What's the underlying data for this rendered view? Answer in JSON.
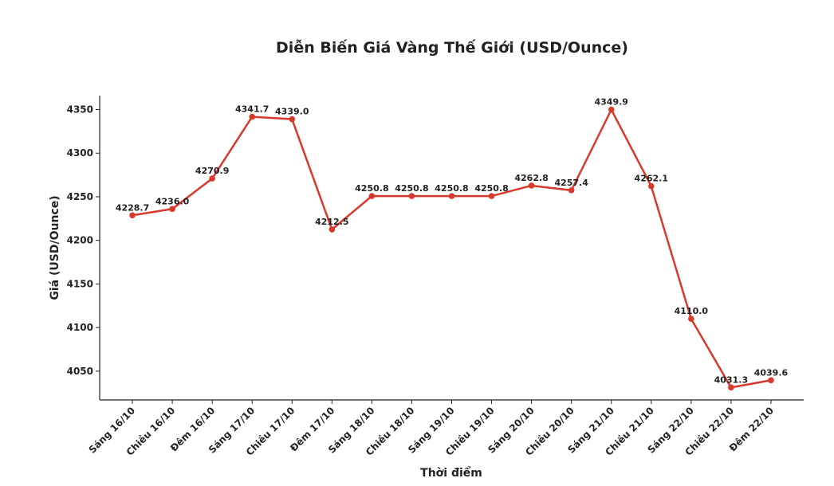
{
  "chart_data": {
    "type": "line",
    "title": "Diễn Biến Giá Vàng Thế Giới (USD/Ounce)",
    "x_label": "Thời điểm",
    "y_label": "Giá (USD/Ounce)",
    "categories": [
      "Sáng 16/10",
      "Chiều 16/10",
      "Đêm 16/10",
      "Sáng 17/10",
      "Chiều 17/10",
      "Đêm 17/10",
      "Sáng 18/10",
      "Chiều 18/10",
      "Sáng 19/10",
      "Chiều 19/10",
      "Sáng 20/10",
      "Chiều 20/10",
      "Sáng 21/10",
      "Chiều 21/10",
      "Sáng 22/10",
      "Chiều 22/10",
      "Đêm 22/10"
    ],
    "series": [
      {
        "name": "Giá",
        "color": "#d9392b",
        "values": [
          4228.7,
          4236.0,
          4270.9,
          4341.7,
          4339.0,
          4212.5,
          4250.8,
          4250.8,
          4250.8,
          4250.8,
          4262.8,
          4257.4,
          4349.9,
          4262.1,
          4110.0,
          4031.3,
          4039.6
        ],
        "value_labels": [
          "4228.7",
          "4236.0",
          "4270.9",
          "4341.7",
          "4339.0",
          "4212.5",
          "4250.8",
          "4250.8",
          "4250.8",
          "4250.8",
          "4262.8",
          "4257.4",
          "4349.9",
          "4262.1",
          "4110.0",
          "4031.3",
          "4039.6"
        ]
      }
    ],
    "ylim": [
      4017,
      4366
    ],
    "yticks": [
      4050,
      4100,
      4150,
      4200,
      4250,
      4300,
      4350
    ],
    "grid": false
  }
}
